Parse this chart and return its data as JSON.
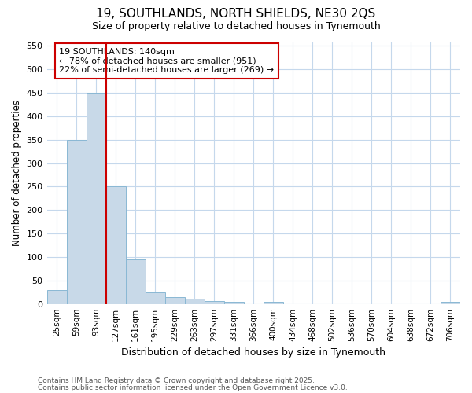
{
  "title1": "19, SOUTHLANDS, NORTH SHIELDS, NE30 2QS",
  "title2": "Size of property relative to detached houses in Tynemouth",
  "xlabel": "Distribution of detached houses by size in Tynemouth",
  "ylabel": "Number of detached properties",
  "categories": [
    "25sqm",
    "59sqm",
    "93sqm",
    "127sqm",
    "161sqm",
    "195sqm",
    "229sqm",
    "263sqm",
    "297sqm",
    "331sqm",
    "366sqm",
    "400sqm",
    "434sqm",
    "468sqm",
    "502sqm",
    "536sqm",
    "570sqm",
    "604sqm",
    "638sqm",
    "672sqm",
    "706sqm"
  ],
  "values": [
    30,
    350,
    450,
    250,
    95,
    25,
    15,
    12,
    7,
    5,
    0,
    5,
    0,
    0,
    0,
    0,
    0,
    0,
    0,
    0,
    5
  ],
  "bar_color": "#c8d9e8",
  "bar_edge_color": "#8ab8d4",
  "vline_color": "#cc0000",
  "ylim": [
    0,
    560
  ],
  "yticks": [
    0,
    50,
    100,
    150,
    200,
    250,
    300,
    350,
    400,
    450,
    500,
    550
  ],
  "annotation_text": "19 SOUTHLANDS: 140sqm\n← 78% of detached houses are smaller (951)\n22% of semi-detached houses are larger (269) →",
  "annotation_box_color": "#ffffff",
  "annotation_box_edgecolor": "#cc0000",
  "footer1": "Contains HM Land Registry data © Crown copyright and database right 2025.",
  "footer2": "Contains public sector information licensed under the Open Government Licence v3.0.",
  "bg_color": "#ffffff",
  "grid_color": "#c5d8ec"
}
